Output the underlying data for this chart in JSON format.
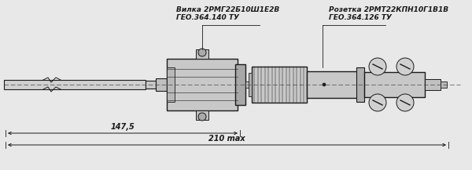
{
  "bg_color": "#e8e8e8",
  "line_color": "#1a1a1a",
  "text_color": "#1a1a1a",
  "label_vilka_line1": "Вилка 2РМГ22Б10Ш1Е2В",
  "label_vilka_line2": "ГЕО.364.140 ТУ",
  "label_rozetka_line1": "Розетка 2РМТ22КПН10Г1В1В",
  "label_rozetka_line2": "ГЕО.364.126 ТУ",
  "dim1_label": "147,5",
  "dim2_label": "210 max",
  "figsize": [
    6.0,
    2.17
  ],
  "dpi": 100
}
